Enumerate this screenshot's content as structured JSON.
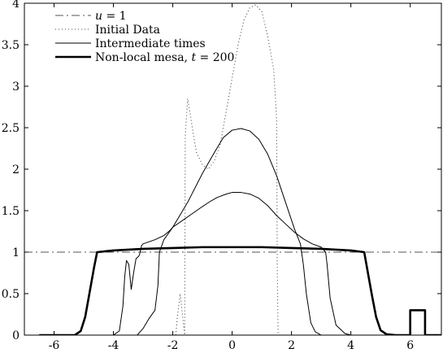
{
  "chart_data": {
    "type": "line",
    "title": "",
    "xlabel": "",
    "ylabel": "",
    "xlim": [
      -7,
      7.05
    ],
    "ylim": [
      0,
      4
    ],
    "xticks": [
      -6,
      -4,
      -2,
      0,
      2,
      4,
      6
    ],
    "yticks": [
      0,
      0.5,
      1,
      1.5,
      2,
      2.5,
      3,
      3.5,
      4
    ],
    "xtick_labels": [
      "-6",
      "-4",
      "-2",
      "0",
      "2",
      "4",
      "6"
    ],
    "ytick_labels": [
      "0",
      "0.5",
      "1",
      "1.5",
      "2",
      "2.5",
      "3",
      "3.5",
      "4"
    ],
    "grid": false,
    "legend_position": "top-left",
    "series": [
      {
        "name": "u = 1",
        "legend_label": {
          "math": "u",
          "rest": " = 1"
        },
        "style": "dashdot",
        "color": "#555555",
        "x": [
          -7,
          7.05
        ],
        "y": [
          1,
          1
        ]
      },
      {
        "name": "Initial Data",
        "legend_label": {
          "text": "Initial Data"
        },
        "style": "dotted",
        "color": "#444444",
        "x": [
          -1.9,
          -1.85,
          -1.75,
          -1.6,
          -1.58,
          -1.5,
          -1.45,
          -1.3,
          -1.2,
          -1.0,
          -0.8,
          -0.6,
          -0.4,
          -0.3,
          -0.1,
          0.0,
          0.2,
          0.4,
          0.6,
          0.8,
          1.0,
          1.2,
          1.4,
          1.5,
          1.52,
          1.55
        ],
        "y": [
          0,
          0.2,
          0.5,
          0,
          2.4,
          2.85,
          2.75,
          2.4,
          2.2,
          2.05,
          2.0,
          2.1,
          2.3,
          2.5,
          2.9,
          3.1,
          3.5,
          3.8,
          3.95,
          3.98,
          3.9,
          3.6,
          3.2,
          2.6,
          0.8,
          0
        ]
      },
      {
        "name": "Intermediate times (1)",
        "legend_label": {
          "text": "Intermediate times"
        },
        "style": "solid-thin",
        "color": "#000000",
        "x": [
          -6.5,
          -4.0,
          -3.8,
          -3.68,
          -3.62,
          -3.56,
          -3.48,
          -3.4,
          -3.32,
          -3.24,
          -3.15,
          -3.12,
          -3.05,
          -3.0,
          -2.6,
          -2.3,
          -2.1,
          -2.0,
          -1.6,
          -1.4,
          -1.0,
          -0.7,
          -0.5,
          -0.2,
          0.0,
          0.3,
          0.6,
          0.9,
          1.2,
          1.5,
          1.8,
          2.1,
          2.4,
          2.7,
          3.0,
          3.15,
          3.2,
          3.3,
          3.5,
          3.8,
          4.0,
          4.5
        ],
        "y": [
          0,
          0,
          0.05,
          0.35,
          0.7,
          0.9,
          0.85,
          0.55,
          0.75,
          0.92,
          0.95,
          0.97,
          1.08,
          1.1,
          1.15,
          1.2,
          1.26,
          1.3,
          1.4,
          1.45,
          1.55,
          1.62,
          1.66,
          1.7,
          1.72,
          1.72,
          1.7,
          1.65,
          1.56,
          1.44,
          1.34,
          1.24,
          1.16,
          1.1,
          1.06,
          1.0,
          0.85,
          0.45,
          0.12,
          0.02,
          0,
          0
        ]
      },
      {
        "name": "Intermediate times (2)",
        "style": "solid-thin",
        "color": "#000000",
        "x": [
          -6.5,
          -3.2,
          -3.0,
          -2.8,
          -2.6,
          -2.5,
          -2.45,
          -2.3,
          -2.0,
          -1.5,
          -1.0,
          -0.6,
          -0.3,
          0.0,
          0.3,
          0.6,
          0.9,
          1.2,
          1.5,
          1.8,
          2.1,
          2.3,
          2.4,
          2.5,
          2.65,
          2.8,
          3.0,
          4.5
        ],
        "y": [
          0,
          0,
          0.08,
          0.2,
          0.3,
          0.6,
          1.0,
          1.15,
          1.3,
          1.6,
          1.95,
          2.2,
          2.38,
          2.47,
          2.49,
          2.46,
          2.36,
          2.18,
          1.92,
          1.6,
          1.28,
          1.1,
          0.85,
          0.5,
          0.15,
          0.04,
          0,
          0
        ]
      },
      {
        "name": "Non-local mesa, t = 200",
        "legend_label": {
          "text": "Non-local mesa, ",
          "math": "t",
          "rest": " = 200"
        },
        "style": "solid-thick",
        "color": "#000000",
        "x": [
          -6.5,
          -5.3,
          -5.1,
          -4.95,
          -4.8,
          -4.65,
          -4.55,
          -4.0,
          -3.0,
          -2.0,
          -1.0,
          0.0,
          1.0,
          2.0,
          3.0,
          4.0,
          4.45,
          4.55,
          4.7,
          4.85,
          5.0,
          5.2,
          5.5,
          6.0,
          6.0,
          6.5,
          6.5,
          7.05
        ],
        "y": [
          0,
          0,
          0.05,
          0.22,
          0.52,
          0.82,
          1.0,
          1.02,
          1.04,
          1.05,
          1.06,
          1.06,
          1.06,
          1.05,
          1.04,
          1.02,
          1.0,
          0.8,
          0.5,
          0.22,
          0.06,
          0.01,
          0,
          0,
          0.3,
          0.3,
          0,
          0
        ]
      }
    ]
  }
}
